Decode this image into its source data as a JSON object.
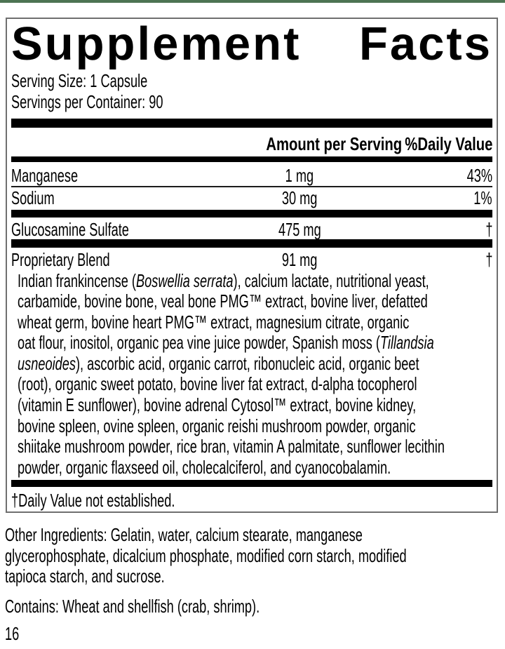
{
  "page": {
    "accent_bar_color": "#4d7453"
  },
  "panel": {
    "title_left": "Supplement",
    "title_right": "Facts",
    "serving_size": "Serving Size: 1 Capsule",
    "servings_per_container": "Servings per Container: 90",
    "columns": {
      "amount_header": "Amount per Serving",
      "dv_header": "%Daily Value"
    },
    "rows": [
      {
        "name": "Manganese",
        "amount": "1 mg",
        "dv": "43%"
      },
      {
        "name": "Sodium",
        "amount": "30 mg",
        "dv": "1%"
      },
      {
        "name": "Glucosamine Sulfate",
        "amount": "475 mg",
        "dv": "†"
      },
      {
        "name": "Proprietary Blend",
        "amount": "91 mg",
        "dv": "†"
      }
    ],
    "blend_lines": [
      "Indian frankincense (*Boswellia serrata*), calcium lactate, nutritional yeast,",
      "carbamide, bovine bone, veal bone PMG™ extract, bovine liver, defatted",
      "wheat germ, bovine heart PMG™ extract, magnesium citrate, organic",
      "oat flour, inositol, organic pea vine juice powder, Spanish moss (*Tillandsia*",
      "*usneoides*), ascorbic acid, organic carrot, ribonucleic acid, organic beet",
      "(root), organic sweet potato, bovine liver fat extract, d-alpha tocopherol",
      "(vitamin E sunflower), bovine adrenal Cytosol™ extract, bovine kidney,",
      "bovine spleen, ovine spleen, organic reishi mushroom powder, organic",
      "shiitake mushroom powder, rice bran, vitamin A palmitate, sunflower lecithin",
      "powder, organic flaxseed oil, cholecalciferol, and cyanocobalamin."
    ],
    "footnote": "†Daily Value not established."
  },
  "below": {
    "other_ingredients_lines": [
      "Other Ingredients: Gelatin, water, calcium stearate, manganese",
      "glycerophosphate, dicalcium phosphate, modified corn starch, modified",
      "tapioca starch, and sucrose."
    ],
    "contains": "Contains: Wheat and shellfish (crab, shrimp).",
    "page_number": "16"
  }
}
